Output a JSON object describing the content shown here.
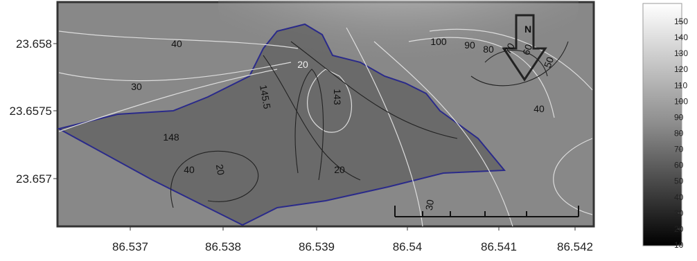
{
  "map": {
    "x_ticks": [
      "86.537",
      "86.538",
      "86.539",
      "86.54",
      "86.541",
      "86.542"
    ],
    "y_ticks": [
      "23.658",
      "23.6575",
      "23.657"
    ],
    "contour_labels": [
      "40",
      "30",
      "100",
      "90",
      "80",
      "70",
      "60",
      "50",
      "40",
      "148",
      "145.5",
      "143",
      "20",
      "20",
      "40",
      "20",
      "30"
    ],
    "north_label": "N",
    "colorbar_labels": [
      "150",
      "140",
      "130",
      "120",
      "110",
      "100",
      "90",
      "80",
      "70",
      "60",
      "50",
      "40",
      "30",
      "20",
      "10"
    ]
  }
}
